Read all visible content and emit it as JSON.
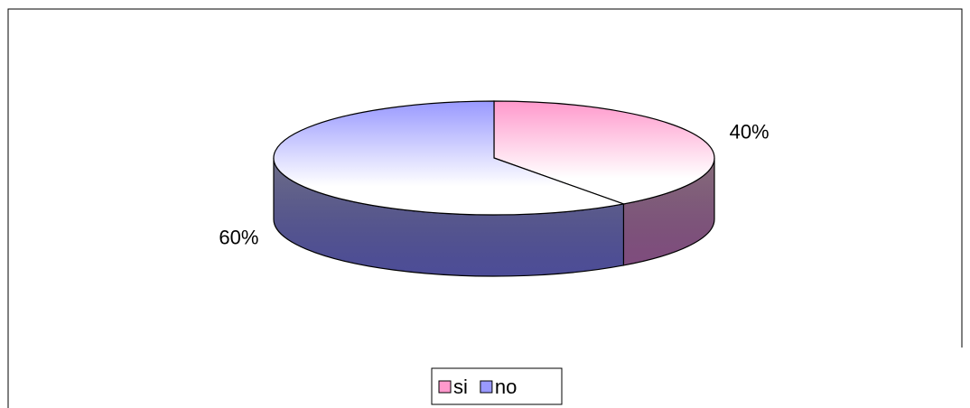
{
  "chart_data": {
    "type": "pie3d",
    "categories": [
      "si",
      "no"
    ],
    "values": [
      40,
      60
    ],
    "value_labels": [
      "40%",
      "60%"
    ],
    "colors": [
      "#ff99cc",
      "#9999ff"
    ],
    "legend": "bottom"
  }
}
